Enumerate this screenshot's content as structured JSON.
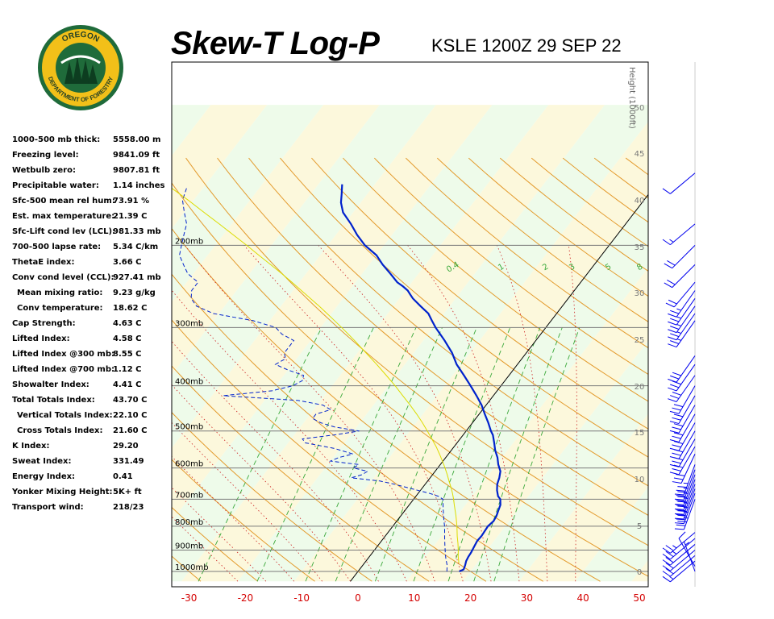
{
  "logo": {
    "text_top": "OREGON",
    "text_bottom": "DEPARTMENT OF FORESTRY",
    "ring_color": "#f2c019",
    "inner_color": "#1f6b3a"
  },
  "header": {
    "title": "Skew-T Log-P",
    "station": "KSLE 1200Z 29 SEP 22"
  },
  "indices": [
    {
      "label": "1000-500 mb thick:",
      "value": "5558.00 m",
      "indent": false
    },
    {
      "label": "Freezing level:",
      "value": "9841.09 ft",
      "indent": false
    },
    {
      "label": "Wetbulb zero:",
      "value": "9807.81 ft",
      "indent": false
    },
    {
      "label": "Precipitable water:",
      "value": "1.14 inches",
      "indent": false
    },
    {
      "label": "Sfc-500 mean rel hum:",
      "value": "73.91 %",
      "indent": false
    },
    {
      "label": "Est. max temperature:",
      "value": "21.39 C",
      "indent": false
    },
    {
      "label": "Sfc-Lift cond lev (LCL):",
      "value": "981.33 mb",
      "indent": false
    },
    {
      "label": "700-500 lapse rate:",
      "value": "5.34 C/km",
      "indent": false
    },
    {
      "label": "ThetaE index:",
      "value": "3.66 C",
      "indent": false
    },
    {
      "label": "Conv cond level (CCL):",
      "value": "927.41 mb",
      "indent": false
    },
    {
      "label": "Mean mixing ratio:",
      "value": "9.23 g/kg",
      "indent": true
    },
    {
      "label": "Conv temperature:",
      "value": "18.62 C",
      "indent": true
    },
    {
      "label": "Cap Strength:",
      "value": "4.63 C",
      "indent": false
    },
    {
      "label": "Lifted Index:",
      "value": "4.58 C",
      "indent": false
    },
    {
      "label": "Lifted Index @300 mb:",
      "value": "8.55 C",
      "indent": false
    },
    {
      "label": "Lifted Index @700 mb:",
      "value": "1.12 C",
      "indent": false
    },
    {
      "label": "Showalter Index:",
      "value": "4.41 C",
      "indent": false
    },
    {
      "label": "Total Totals Index:",
      "value": "43.70 C",
      "indent": false
    },
    {
      "label": "Vertical Totals Index:",
      "value": "22.10 C",
      "indent": true
    },
    {
      "label": "Cross Totals Index:",
      "value": "21.60 C",
      "indent": true
    },
    {
      "label": "K Index:",
      "value": "29.20",
      "indent": false
    },
    {
      "label": "Sweat Index:",
      "value": "331.49",
      "indent": false
    },
    {
      "label": "Energy Index:",
      "value": "0.41",
      "indent": false
    },
    {
      "label": "Yonker Mixing Height:",
      "value": "5K+ ft",
      "indent": false
    },
    {
      "label": "Transport wind:",
      "value": "218/23",
      "indent": false
    }
  ],
  "chart_data": {
    "type": "line",
    "title": "Skew-T Log-P",
    "subtitle": "KSLE 1200Z 29 SEP 22",
    "x_ticks": [
      -30,
      -20,
      -10,
      0,
      10,
      20,
      30,
      40,
      50
    ],
    "pressure_levels": [
      {
        "p": 200,
        "label": "200mb"
      },
      {
        "p": 300,
        "label": "300mb"
      },
      {
        "p": 400,
        "label": "400mb"
      },
      {
        "p": 500,
        "label": "500mb"
      },
      {
        "p": 600,
        "label": "600mb"
      },
      {
        "p": 700,
        "label": "700mb"
      },
      {
        "p": 800,
        "label": "800mb"
      },
      {
        "p": 900,
        "label": "900mb"
      },
      {
        "p": 1000,
        "label": "1000mb"
      }
    ],
    "height_axis": {
      "label": "Height (1000ft)",
      "ticks": [
        0,
        5,
        10,
        15,
        20,
        25,
        30,
        35,
        40,
        45,
        50
      ]
    },
    "mixing_ratio_labels": [
      "0.4",
      "1",
      "2",
      "3",
      "5",
      "8"
    ],
    "grid": true,
    "series": [
      {
        "kind": "temperature",
        "color": "#0022cc",
        "points": [
          [
            1000,
            18.0
          ],
          [
            990,
            18.5
          ],
          [
            970,
            18.2
          ],
          [
            950,
            17.8
          ],
          [
            930,
            17.6
          ],
          [
            910,
            17.5
          ],
          [
            900,
            17.4
          ],
          [
            880,
            17.2
          ],
          [
            860,
            17.0
          ],
          [
            840,
            17.1
          ],
          [
            820,
            17.0
          ],
          [
            800,
            16.9
          ],
          [
            780,
            17.2
          ],
          [
            760,
            17.0
          ],
          [
            740,
            16.6
          ],
          [
            720,
            16.2
          ],
          [
            700,
            15.4
          ],
          [
            690,
            14.6
          ],
          [
            670,
            13.6
          ],
          [
            650,
            12.8
          ],
          [
            630,
            12.3
          ],
          [
            610,
            11.6
          ],
          [
            590,
            10.3
          ],
          [
            570,
            9.2
          ],
          [
            550,
            7.8
          ],
          [
            530,
            6.6
          ],
          [
            510,
            5.3
          ],
          [
            500,
            4.4
          ],
          [
            480,
            2.8
          ],
          [
            460,
            1.0
          ],
          [
            440,
            -0.8
          ],
          [
            420,
            -3.0
          ],
          [
            400,
            -5.4
          ],
          [
            380,
            -8.0
          ],
          [
            360,
            -10.8
          ],
          [
            340,
            -13.2
          ],
          [
            320,
            -16.2
          ],
          [
            300,
            -19.6
          ],
          [
            290,
            -21.2
          ],
          [
            280,
            -22.8
          ],
          [
            270,
            -25.2
          ],
          [
            260,
            -27.6
          ],
          [
            255,
            -28.6
          ],
          [
            250,
            -29.6
          ],
          [
            245,
            -31.0
          ],
          [
            240,
            -32.6
          ],
          [
            230,
            -35.0
          ],
          [
            220,
            -37.6
          ],
          [
            210,
            -40.0
          ],
          [
            200,
            -43.4
          ],
          [
            190,
            -46.2
          ],
          [
            180,
            -48.8
          ],
          [
            170,
            -51.8
          ],
          [
            162,
            -53.5
          ],
          [
            155,
            -54.6
          ],
          [
            148,
            -55.8
          ]
        ]
      },
      {
        "kind": "dewpoint",
        "color": "#0022cc",
        "points": [
          [
            1000,
            15.8
          ],
          [
            970,
            15.0
          ],
          [
            940,
            13.9
          ],
          [
            910,
            12.9
          ],
          [
            880,
            11.9
          ],
          [
            850,
            10.9
          ],
          [
            820,
            9.9
          ],
          [
            800,
            9.2
          ],
          [
            780,
            8.4
          ],
          [
            760,
            7.6
          ],
          [
            740,
            6.8
          ],
          [
            720,
            6.0
          ],
          [
            700,
            5.2
          ],
          [
            690,
            4.0
          ],
          [
            680,
            2.0
          ],
          [
            670,
            -0.5
          ],
          [
            660,
            -3.0
          ],
          [
            650,
            -5.5
          ],
          [
            640,
            -8.5
          ],
          [
            630,
            -14.0
          ],
          [
            620,
            -12.5
          ],
          [
            610,
            -12.0
          ],
          [
            600,
            -15.0
          ],
          [
            590,
            -14.5
          ],
          [
            580,
            -20.0
          ],
          [
            570,
            -19.0
          ],
          [
            560,
            -17.0
          ],
          [
            545,
            -21.0
          ],
          [
            530,
            -27.0
          ],
          [
            520,
            -28.0
          ],
          [
            510,
            -23.0
          ],
          [
            500,
            -19.0
          ],
          [
            490,
            -24.0
          ],
          [
            480,
            -27.0
          ],
          [
            470,
            -29.0
          ],
          [
            460,
            -29.0
          ],
          [
            450,
            -27.0
          ],
          [
            440,
            -29.0
          ],
          [
            430,
            -34.0
          ],
          [
            420,
            -48.0
          ],
          [
            410,
            -40.0
          ],
          [
            400,
            -37.0
          ],
          [
            390,
            -36.0
          ],
          [
            380,
            -36.5
          ],
          [
            370,
            -40.0
          ],
          [
            360,
            -43.0
          ],
          [
            350,
            -42.0
          ],
          [
            340,
            -43.0
          ],
          [
            330,
            -43.0
          ],
          [
            320,
            -43.0
          ],
          [
            310,
            -46.0
          ],
          [
            300,
            -48.0
          ],
          [
            290,
            -53.0
          ],
          [
            280,
            -61.0
          ],
          [
            270,
            -65.0
          ],
          [
            260,
            -67.0
          ],
          [
            250,
            -68.0
          ],
          [
            240,
            -68.0
          ],
          [
            230,
            -71.0
          ],
          [
            220,
            -73.0
          ],
          [
            210,
            -75.0
          ],
          [
            200,
            -76.0
          ],
          [
            190,
            -77.0
          ],
          [
            180,
            -78.0
          ],
          [
            170,
            -80.0
          ],
          [
            160,
            -82.0
          ],
          [
            150,
            -83.0
          ]
        ]
      },
      {
        "kind": "parcel",
        "color": "#dcdc00",
        "points": [
          [
            960,
            16.8
          ],
          [
            930,
            15.8
          ],
          [
            900,
            14.9
          ],
          [
            870,
            13.9
          ],
          [
            840,
            12.8
          ],
          [
            800,
            11.4
          ],
          [
            760,
            9.8
          ],
          [
            720,
            8.0
          ],
          [
            700,
            7.1
          ],
          [
            680,
            6.1
          ],
          [
            660,
            5.0
          ],
          [
            640,
            3.8
          ],
          [
            620,
            2.6
          ],
          [
            600,
            1.3
          ],
          [
            580,
            -0.1
          ],
          [
            560,
            -1.6
          ],
          [
            540,
            -3.2
          ],
          [
            520,
            -5.0
          ],
          [
            500,
            -6.9
          ],
          [
            480,
            -8.9
          ],
          [
            460,
            -11.1
          ],
          [
            440,
            -13.5
          ],
          [
            420,
            -16.1
          ],
          [
            400,
            -18.8
          ],
          [
            380,
            -21.8
          ],
          [
            360,
            -25.0
          ],
          [
            340,
            -28.5
          ],
          [
            320,
            -32.2
          ],
          [
            310,
            -34.2
          ],
          [
            300,
            -36.3
          ],
          [
            290,
            -38.5
          ],
          [
            280,
            -40.8
          ],
          [
            270,
            -43.2
          ],
          [
            260,
            -45.8
          ],
          [
            250,
            -48.5
          ],
          [
            240,
            -51.3
          ],
          [
            230,
            -54.3
          ],
          [
            220,
            -57.5
          ],
          [
            210,
            -60.9
          ],
          [
            200,
            -64.4
          ],
          [
            190,
            -68.2
          ],
          [
            180,
            -72.2
          ],
          [
            170,
            -76.5
          ],
          [
            160,
            -81.0
          ],
          [
            150,
            -86.0
          ]
        ]
      }
    ],
    "winds": [
      {
        "p": 1000,
        "dir": 340,
        "spd": 5
      },
      {
        "p": 975,
        "dir": 330,
        "spd": 10
      },
      {
        "p": 950,
        "dir": 230,
        "spd": 15
      },
      {
        "p": 925,
        "dir": 230,
        "spd": 20
      },
      {
        "p": 900,
        "dir": 230,
        "spd": 20
      },
      {
        "p": 875,
        "dir": 230,
        "spd": 20
      },
      {
        "p": 850,
        "dir": 230,
        "spd": 25
      },
      {
        "p": 825,
        "dir": 230,
        "spd": 25
      },
      {
        "p": 700,
        "dir": 200,
        "spd": 35
      },
      {
        "p": 680,
        "dir": 200,
        "spd": 35
      },
      {
        "p": 665,
        "dir": 200,
        "spd": 35
      },
      {
        "p": 650,
        "dir": 200,
        "spd": 35
      },
      {
        "p": 635,
        "dir": 200,
        "spd": 35
      },
      {
        "p": 620,
        "dir": 200,
        "spd": 35
      },
      {
        "p": 605,
        "dir": 200,
        "spd": 35
      },
      {
        "p": 590,
        "dir": 200,
        "spd": 35
      },
      {
        "p": 560,
        "dir": 205,
        "spd": 30
      },
      {
        "p": 540,
        "dir": 210,
        "spd": 30
      },
      {
        "p": 520,
        "dir": 210,
        "spd": 30
      },
      {
        "p": 500,
        "dir": 210,
        "spd": 30
      },
      {
        "p": 480,
        "dir": 210,
        "spd": 30
      },
      {
        "p": 460,
        "dir": 210,
        "spd": 30
      },
      {
        "p": 440,
        "dir": 210,
        "spd": 30
      },
      {
        "p": 420,
        "dir": 210,
        "spd": 30
      },
      {
        "p": 400,
        "dir": 210,
        "spd": 30
      },
      {
        "p": 380,
        "dir": 215,
        "spd": 30
      },
      {
        "p": 360,
        "dir": 215,
        "spd": 30
      },
      {
        "p": 345,
        "dir": 215,
        "spd": 30
      },
      {
        "p": 290,
        "dir": 215,
        "spd": 25
      },
      {
        "p": 280,
        "dir": 215,
        "spd": 25
      },
      {
        "p": 270,
        "dir": 215,
        "spd": 25
      },
      {
        "p": 260,
        "dir": 215,
        "spd": 25
      },
      {
        "p": 250,
        "dir": 215,
        "spd": 25
      },
      {
        "p": 240,
        "dir": 220,
        "spd": 20
      },
      {
        "p": 220,
        "dir": 225,
        "spd": 20
      },
      {
        "p": 200,
        "dir": 225,
        "spd": 20
      },
      {
        "p": 180,
        "dir": 230,
        "spd": 15
      },
      {
        "p": 140,
        "dir": 230,
        "spd": 10
      }
    ]
  }
}
